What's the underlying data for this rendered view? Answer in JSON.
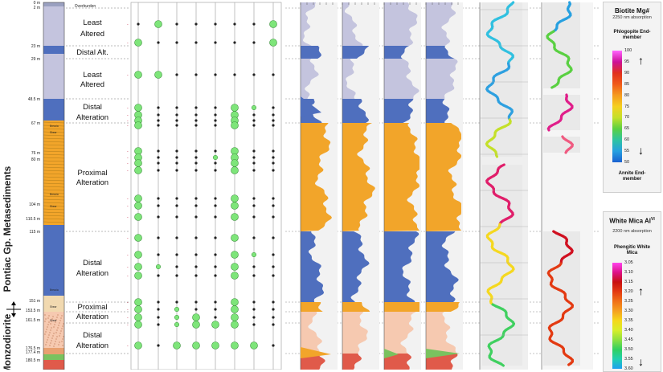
{
  "vertical_label_top": "Pontiac Gp. Metasediments",
  "vertical_label_bottom": "Monzodiorite",
  "overburden_label": "Overburden",
  "depth_markers": [
    "0 m",
    "2 m",
    "23 m",
    "29 m",
    "48.5 m",
    "67 m",
    "76 m",
    "80 m",
    "104 m",
    "110.5 m",
    "115 m",
    "151 m",
    "153.5 m",
    "161.5 m",
    "176.5 m",
    "177.4 m",
    "180.5 m"
  ],
  "lith_small_labels": [
    "Breccia",
    "Shear",
    "Breccia",
    "Shear",
    "Breccia",
    "Shear",
    "Shear"
  ],
  "zones": [
    {
      "line1": "Least",
      "line2": "Altered"
    },
    {
      "line1": "Distal Alt.",
      "line2": ""
    },
    {
      "line1": "Least",
      "line2": "Altered"
    },
    {
      "line1": "Distal",
      "line2": "Alteration"
    },
    {
      "line1": "Proximal",
      "line2": "Alteration"
    },
    {
      "line1": "Distal",
      "line2": "Alteration"
    },
    {
      "line1": "Proximal",
      "line2": "Alteration"
    },
    {
      "line1": "Distal",
      "line2": "Alteration"
    }
  ],
  "legend_biotite": {
    "title": "Biotite Mg#",
    "subtitle": "2250 nm absorption",
    "top_end": "Phlogopite End-member",
    "bottom_end": "Annite End-member",
    "ticks": [
      "100",
      "95",
      "90",
      "85",
      "80",
      "75",
      "70",
      "65",
      "60",
      "55",
      "50"
    ]
  },
  "legend_whitemica": {
    "title": "White Mica Al",
    "title_sup": "VI",
    "subtitle": "2200 nm absorption",
    "top_end": "Phengitic White Mica",
    "ticks": [
      "3.05",
      "3.10",
      "3.15",
      "3.20",
      "3.25",
      "3.30",
      "3.35",
      "3.40",
      "3.45",
      "3.50",
      "3.55",
      "3.60"
    ]
  },
  "colors": {
    "least_altered": "#c4c4de",
    "distal": "#4f6fbe",
    "proximal": "#f2a52a",
    "monzodiorite": "#f6c9b0",
    "dot_green": "#7ee57a",
    "grid_line": "#999999"
  }
}
